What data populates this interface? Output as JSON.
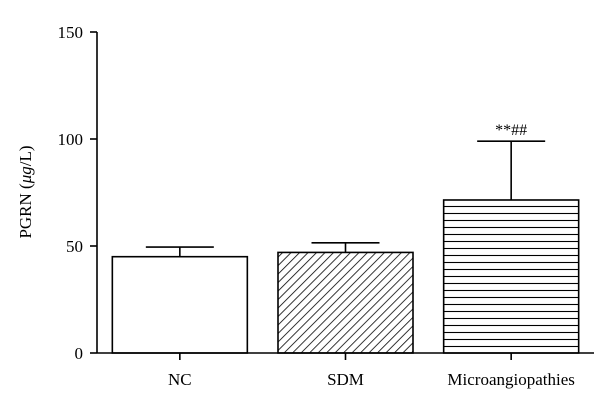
{
  "chart_data": {
    "type": "bar",
    "title": "",
    "xlabel": "",
    "ylabel": "PGRN (μg/L)",
    "ylabel_parts": [
      "PGRN (",
      "μ",
      "g/L)"
    ],
    "ylim": [
      0,
      150
    ],
    "yticks": [
      "0",
      "50",
      "100",
      "150"
    ],
    "categories": [
      "NC",
      "SDM",
      "Microangiopathies"
    ],
    "values": [
      45,
      47,
      71.5
    ],
    "error_upper": [
      49.5,
      51.5,
      99
    ],
    "fill_patterns": [
      "none",
      "diagonal-hatch",
      "horizontal-lines"
    ],
    "annotations": [
      {
        "category": "Microangiopathies",
        "text": "**##"
      }
    ],
    "grid": false,
    "legend": "none"
  }
}
